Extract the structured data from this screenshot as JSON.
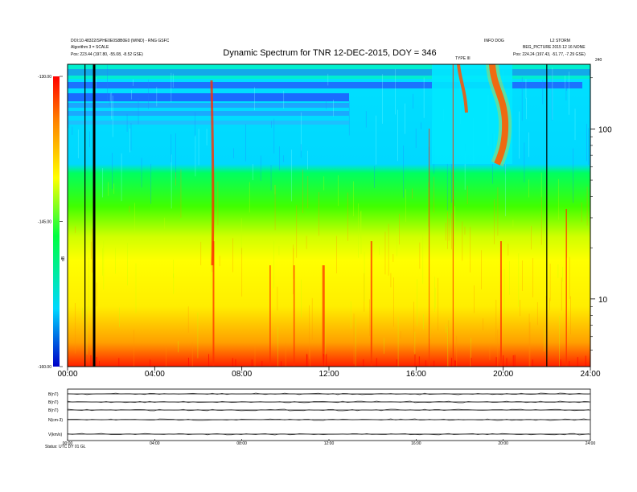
{
  "chart_data": {
    "type": "heatmap",
    "title": "Dynamic Spectrum for TNR 12-DEC-2015, DOY = 346",
    "header_left": [
      "DOI:10.48322/SPHE0E0S8B0E0 (WIND) - RNG GSFC",
      "Algorithm 3 = SCALE",
      "Pos:    223.44 (197.80, -55.08, -8.52 GSE)"
    ],
    "header_right": [
      "INFO DOG",
      "L2 STORM",
      "BEG_PICTURE 2015 12 16 NONE",
      "Pos:    224.24 (197.43, -51.77, -7.29 GSE)"
    ],
    "colorbar": {
      "label": "dB",
      "ticks": [
        "-130.00",
        "-145.00",
        "-160.00"
      ],
      "range": [
        -160,
        -130
      ]
    },
    "x": {
      "label": "",
      "ticks": [
        "00:00",
        "04:00",
        "08:00",
        "12:00",
        "16:00",
        "20:00",
        "24:00"
      ],
      "range": [
        0,
        24
      ]
    },
    "y": {
      "label": "",
      "scale": "log",
      "ticks": [
        "100",
        "10"
      ],
      "range": [
        4,
        240
      ],
      "top_label": "240"
    },
    "vertical_markers_hours": [
      0.8,
      1.22,
      22.0
    ],
    "burst_annotations": [
      "TYPE III"
    ],
    "lower_panels": {
      "labels": [
        "B(nT)",
        "B(nT)",
        "B(nT)",
        "N(cm-3)",
        "V(km/s)"
      ],
      "x_ticks": [
        "00:00",
        "04:00",
        "08:00",
        "12:00",
        "16:00",
        "20:00",
        "24:00"
      ],
      "footer": "Status:  UTC  DY  01 GL"
    }
  },
  "colors": {
    "background": "#ffffff",
    "frame": "#000000"
  }
}
